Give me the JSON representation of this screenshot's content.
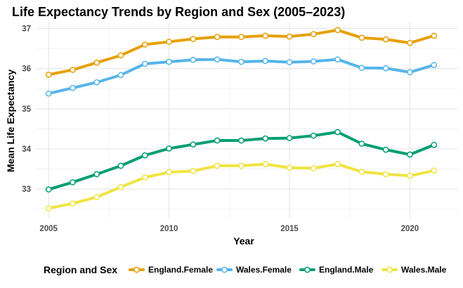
{
  "chart_data": {
    "type": "line",
    "title": "Life Expectancy Trends by Region and Sex (2005–2023)",
    "xlabel": "Year",
    "ylabel": "Mean Life Expectancy",
    "x": [
      2005,
      2006,
      2007,
      2008,
      2009,
      2010,
      2011,
      2012,
      2013,
      2014,
      2015,
      2016,
      2017,
      2018,
      2019,
      2020,
      2021
    ],
    "xlim": [
      2004.5,
      2022.0
    ],
    "ylim": [
      32.25,
      37.15
    ],
    "xticks": [
      2005,
      2010,
      2015,
      2020
    ],
    "yticks": [
      33,
      34,
      35,
      36,
      37
    ],
    "grid": true,
    "legend": {
      "title": "Region and Sex",
      "position": "bottom"
    },
    "series": [
      {
        "name": "England.Female",
        "color": "#E69F00",
        "values": [
          35.85,
          35.97,
          36.15,
          36.33,
          36.6,
          36.67,
          36.74,
          36.79,
          36.79,
          36.82,
          36.8,
          36.86,
          36.96,
          36.77,
          36.73,
          36.64,
          36.82
        ]
      },
      {
        "name": "Wales.Female",
        "color": "#56B4E9",
        "values": [
          35.38,
          35.52,
          35.66,
          35.84,
          36.12,
          36.17,
          36.22,
          36.23,
          36.17,
          36.19,
          36.16,
          36.18,
          36.23,
          36.02,
          36.01,
          35.91,
          36.09
        ]
      },
      {
        "name": "England.Male",
        "color": "#009E73",
        "values": [
          32.99,
          33.17,
          33.37,
          33.58,
          33.84,
          34.01,
          34.11,
          34.21,
          34.21,
          34.26,
          34.27,
          34.33,
          34.42,
          34.13,
          33.98,
          33.86,
          34.1
        ]
      },
      {
        "name": "Wales.Male",
        "color": "#F0E442",
        "values": [
          32.52,
          32.64,
          32.8,
          33.05,
          33.29,
          33.42,
          33.45,
          33.58,
          33.58,
          33.62,
          33.53,
          33.52,
          33.62,
          33.43,
          33.37,
          33.33,
          33.46
        ]
      }
    ]
  }
}
